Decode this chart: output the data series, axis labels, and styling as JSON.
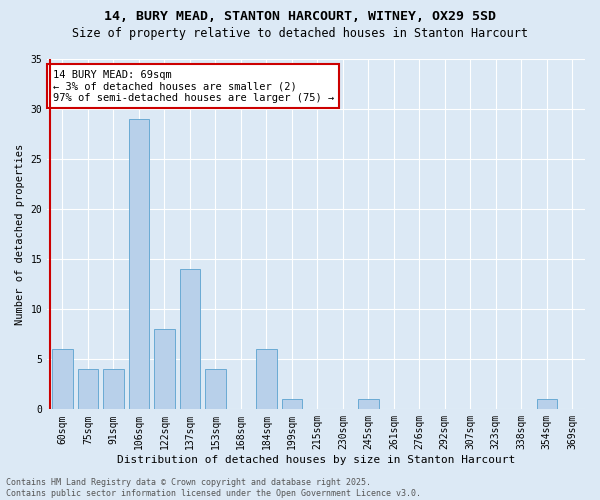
{
  "title": "14, BURY MEAD, STANTON HARCOURT, WITNEY, OX29 5SD",
  "subtitle": "Size of property relative to detached houses in Stanton Harcourt",
  "xlabel": "Distribution of detached houses by size in Stanton Harcourt",
  "ylabel": "Number of detached properties",
  "categories": [
    "60sqm",
    "75sqm",
    "91sqm",
    "106sqm",
    "122sqm",
    "137sqm",
    "153sqm",
    "168sqm",
    "184sqm",
    "199sqm",
    "215sqm",
    "230sqm",
    "245sqm",
    "261sqm",
    "276sqm",
    "292sqm",
    "307sqm",
    "323sqm",
    "338sqm",
    "354sqm",
    "369sqm"
  ],
  "values": [
    6,
    4,
    4,
    29,
    8,
    14,
    4,
    0,
    6,
    1,
    0,
    0,
    1,
    0,
    0,
    0,
    0,
    0,
    0,
    1,
    0
  ],
  "bar_color": "#b8d0ea",
  "bar_edge_color": "#6aaad4",
  "subject_line_color": "#cc0000",
  "annotation_text": "14 BURY MEAD: 69sqm\n← 3% of detached houses are smaller (2)\n97% of semi-detached houses are larger (75) →",
  "annotation_box_color": "#ffffff",
  "annotation_box_edge_color": "#cc0000",
  "ylim": [
    0,
    35
  ],
  "yticks": [
    0,
    5,
    10,
    15,
    20,
    25,
    30,
    35
  ],
  "background_color": "#dce9f5",
  "plot_bg_color": "#dce9f5",
  "footer_text": "Contains HM Land Registry data © Crown copyright and database right 2025.\nContains public sector information licensed under the Open Government Licence v3.0.",
  "title_fontsize": 9.5,
  "subtitle_fontsize": 8.5,
  "xlabel_fontsize": 8,
  "ylabel_fontsize": 7.5,
  "tick_fontsize": 7,
  "annotation_fontsize": 7.5,
  "footer_fontsize": 6
}
